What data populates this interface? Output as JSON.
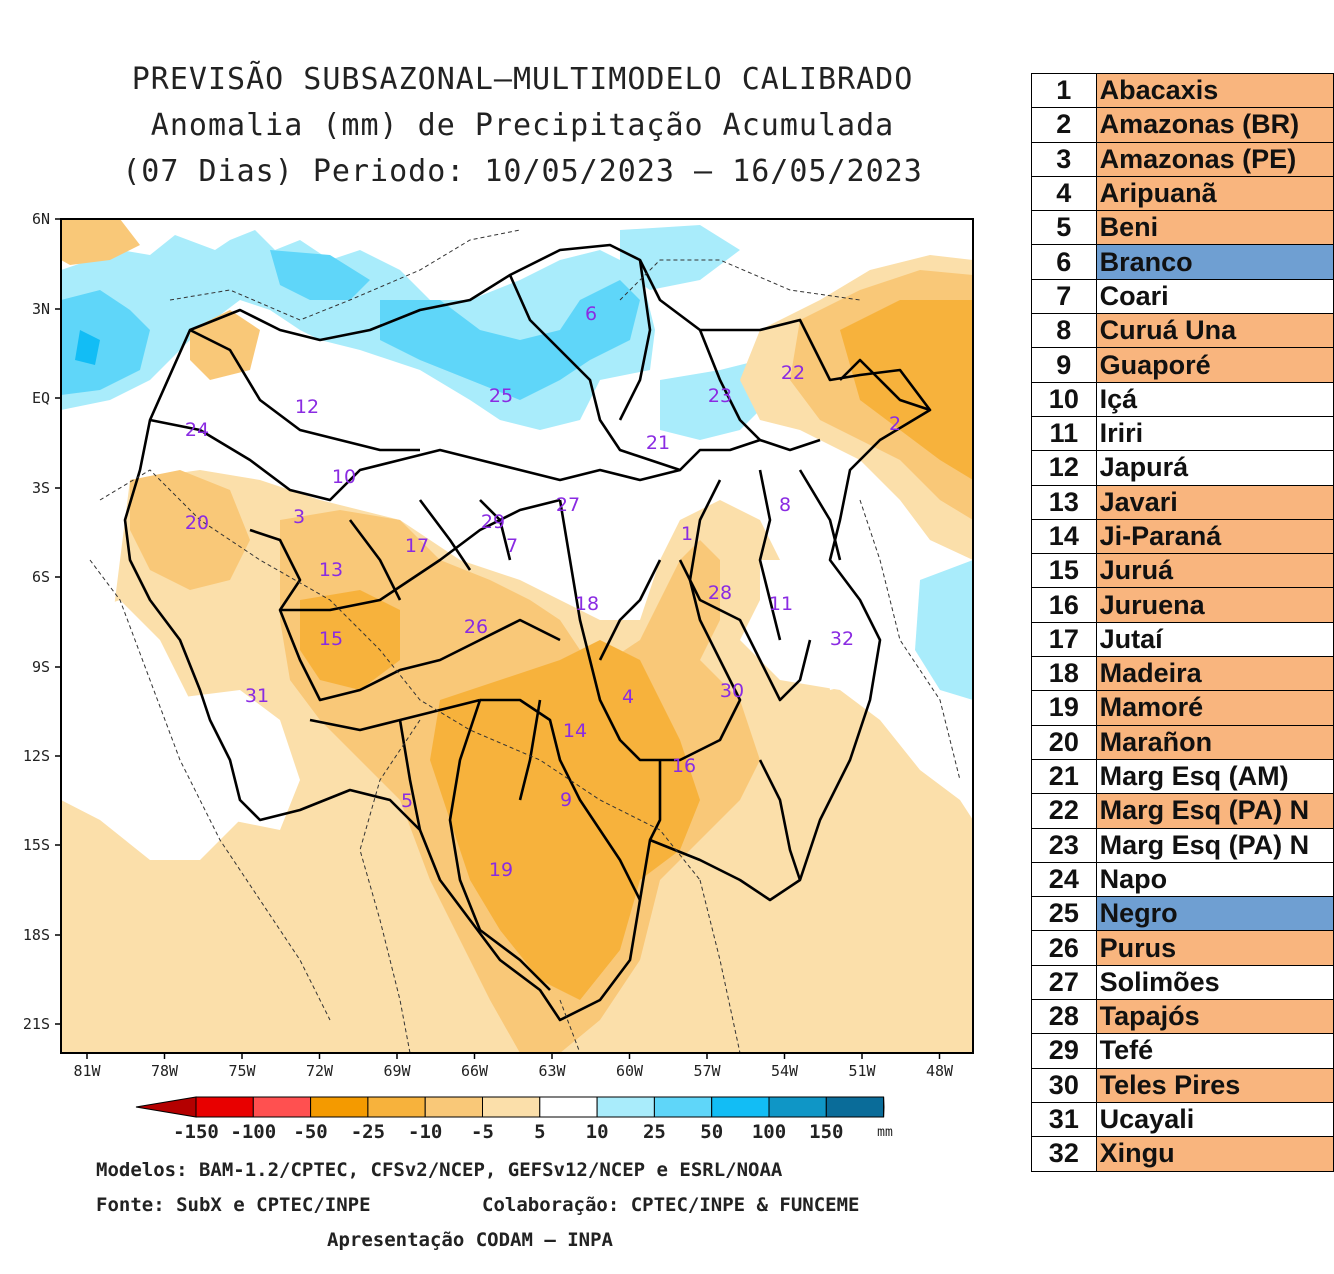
{
  "header": {
    "line1": "PREVISÃO SUBSAZONAL—MULTIMODELO CALIBRADO",
    "line2": "Anomalia (mm) de Precipitação Acumulada",
    "line3": "(07 Dias) Periodo: 10/05/2023 — 16/05/2023"
  },
  "axes": {
    "lat_labels": [
      "6N",
      "3N",
      "EQ",
      "3S",
      "6S",
      "9S",
      "12S",
      "15S",
      "18S",
      "21S"
    ],
    "lon_labels": [
      "81W",
      "78W",
      "75W",
      "72W",
      "69W",
      "66W",
      "63W",
      "60W",
      "57W",
      "54W",
      "51W",
      "48W"
    ]
  },
  "colorbar": {
    "tick_labels": [
      "-150",
      "-100",
      "-50",
      "-25",
      "-10",
      "-5",
      "5",
      "10",
      "25",
      "50",
      "100",
      "150"
    ],
    "unit": "mm",
    "colors": [
      "#b40000",
      "#e80000",
      "#ff5050",
      "#f49a00",
      "#f7b23c",
      "#f9c878",
      "#fbdfaa",
      "#ffffff",
      "#a9ecfb",
      "#5fd6f9",
      "#12bdf5",
      "#0f96c6",
      "#0a6c99",
      "#064e6d"
    ]
  },
  "footer": {
    "models": "Modelos: BAM-1.2/CPTEC, CFSv2/NCEP, GEFSv12/NCEP e ESRL/NOAA",
    "source": "Fonte: SubX e CPTEC/INPE",
    "collab": "Colaboração: CPTEC/INPE & FUNCEME",
    "presentation": "Apresentação CODAM — INPA"
  },
  "map_labels": [
    "6",
    "25",
    "23",
    "22",
    "2",
    "12",
    "24",
    "21",
    "10",
    "3",
    "29",
    "27",
    "8",
    "20",
    "13",
    "17",
    "7",
    "1",
    "28",
    "11",
    "18",
    "26",
    "15",
    "32",
    "4",
    "30",
    "31",
    "14",
    "16",
    "5",
    "9",
    "19"
  ],
  "legend_colors": {
    "dry": "#f9b57e",
    "wet": "#6f9fd2",
    "normal": "#ffffff"
  },
  "basins": [
    {
      "num": "1",
      "name": "Abacaxis",
      "status": "dry"
    },
    {
      "num": "2",
      "name": "Amazonas (BR)",
      "status": "dry"
    },
    {
      "num": "3",
      "name": "Amazonas (PE)",
      "status": "dry"
    },
    {
      "num": "4",
      "name": "Aripuanã",
      "status": "dry"
    },
    {
      "num": "5",
      "name": "Beni",
      "status": "dry"
    },
    {
      "num": "6",
      "name": "Branco",
      "status": "wet"
    },
    {
      "num": "7",
      "name": "Coari",
      "status": "normal"
    },
    {
      "num": "8",
      "name": "Curuá Una",
      "status": "dry"
    },
    {
      "num": "9",
      "name": "Guaporé",
      "status": "dry"
    },
    {
      "num": "10",
      "name": "Içá",
      "status": "normal"
    },
    {
      "num": "11",
      "name": "Iriri",
      "status": "normal"
    },
    {
      "num": "12",
      "name": "Japurá",
      "status": "normal"
    },
    {
      "num": "13",
      "name": "Javari",
      "status": "dry"
    },
    {
      "num": "14",
      "name": "Ji-Paraná",
      "status": "dry"
    },
    {
      "num": "15",
      "name": "Juruá",
      "status": "dry"
    },
    {
      "num": "16",
      "name": "Juruena",
      "status": "dry"
    },
    {
      "num": "17",
      "name": "Jutaí",
      "status": "normal"
    },
    {
      "num": "18",
      "name": "Madeira",
      "status": "dry"
    },
    {
      "num": "19",
      "name": "Mamoré",
      "status": "dry"
    },
    {
      "num": "20",
      "name": "Marañon",
      "status": "dry"
    },
    {
      "num": "21",
      "name": "Marg Esq (AM)",
      "status": "normal"
    },
    {
      "num": "22",
      "name": "Marg Esq (PA) N",
      "status": "dry"
    },
    {
      "num": "23",
      "name": "Marg Esq (PA) N",
      "status": "normal"
    },
    {
      "num": "24",
      "name": "Napo",
      "status": "normal"
    },
    {
      "num": "25",
      "name": "Negro",
      "status": "wet"
    },
    {
      "num": "26",
      "name": "Purus",
      "status": "dry"
    },
    {
      "num": "27",
      "name": "Solimões",
      "status": "normal"
    },
    {
      "num": "28",
      "name": "Tapajós",
      "status": "dry"
    },
    {
      "num": "29",
      "name": "Tefé",
      "status": "normal"
    },
    {
      "num": "30",
      "name": "Teles Pires",
      "status": "dry"
    },
    {
      "num": "31",
      "name": "Ucayali",
      "status": "normal"
    },
    {
      "num": "32",
      "name": "Xingu",
      "status": "dry"
    }
  ]
}
